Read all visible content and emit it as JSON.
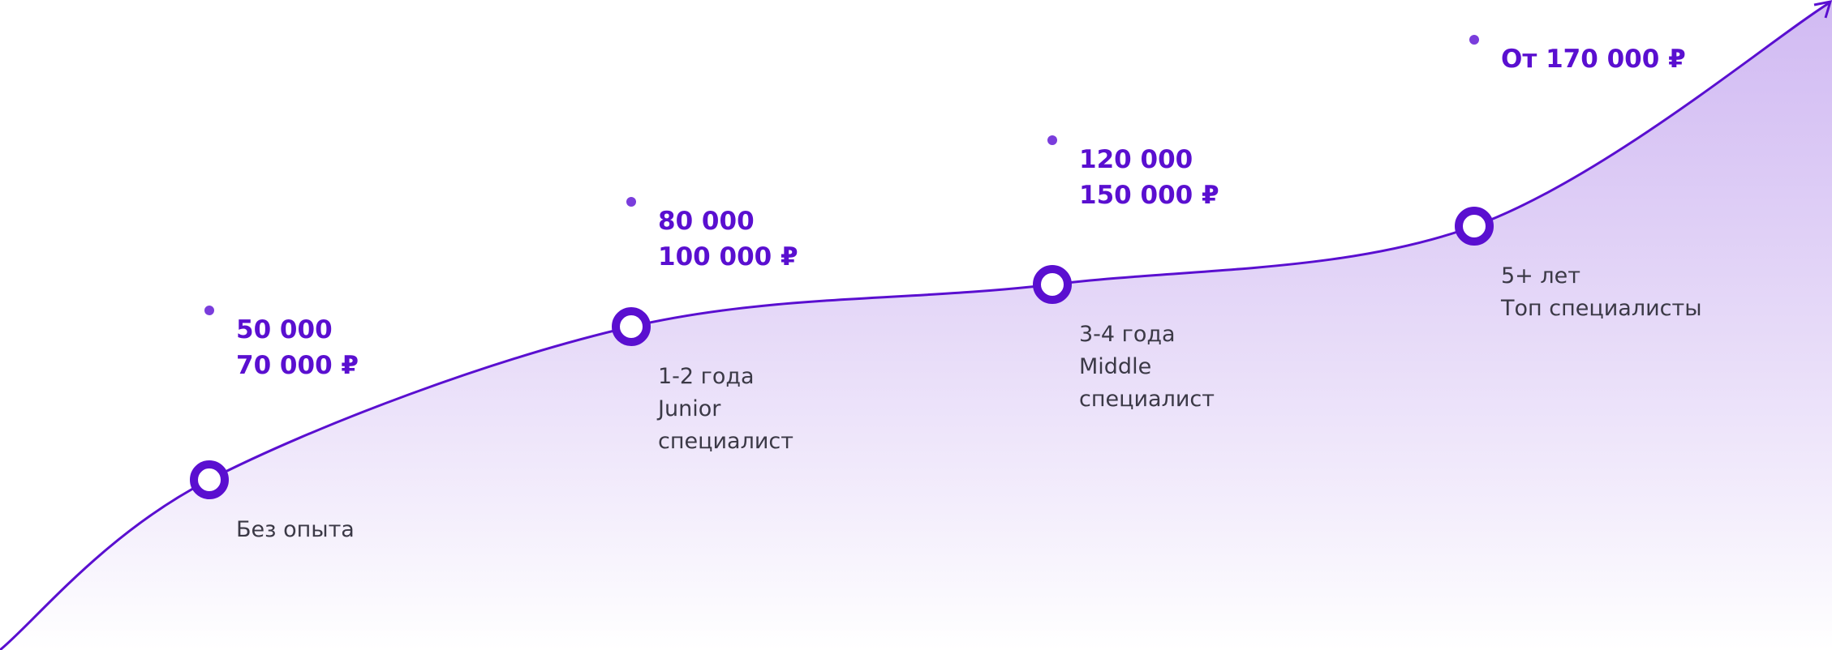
{
  "stages": [
    {
      "salary": [
        "50 000",
        "70 000 ₽"
      ],
      "description": [
        "Без опыта"
      ]
    },
    {
      "salary": [
        "80 000",
        "100 000 ₽"
      ],
      "description": [
        "1-2 года",
        "Junior",
        "специалист"
      ]
    },
    {
      "salary": [
        "120 000",
        "150 000 ₽"
      ],
      "description": [
        "3-4 года",
        "Middle",
        "специалист"
      ]
    },
    {
      "salary": [
        "От 170 000 ₽"
      ],
      "description": [
        "5+ лет",
        "Топ специалисты"
      ]
    }
  ]
}
